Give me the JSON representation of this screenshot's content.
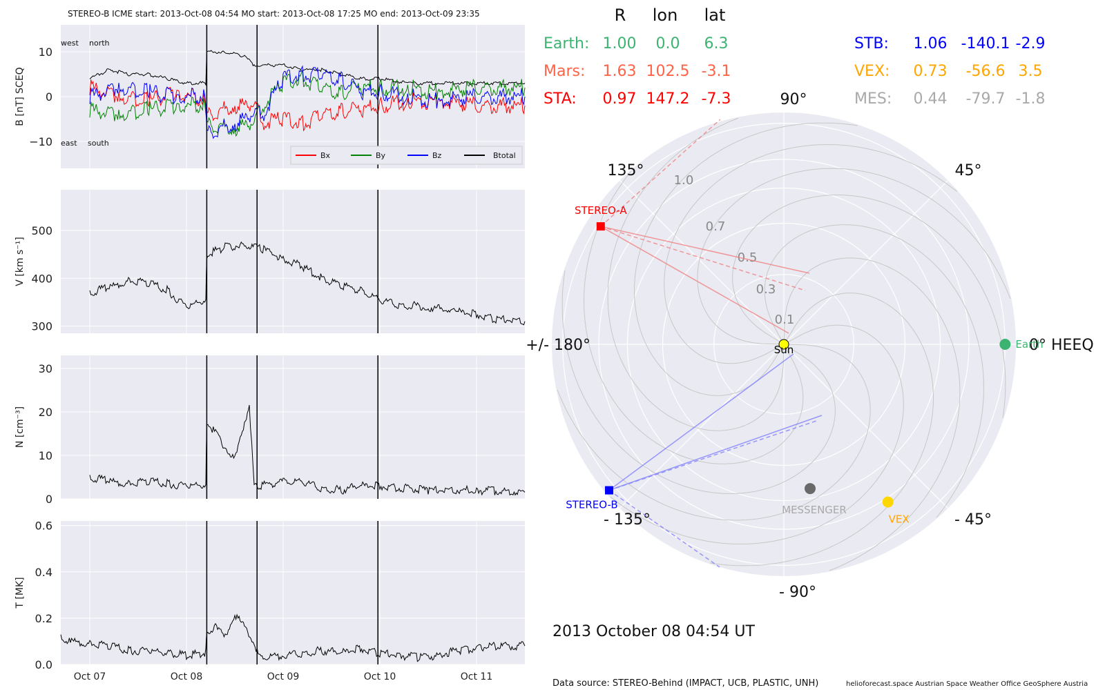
{
  "header": "STEREO-B    ICME start: 2013-Oct-08 04:54   MO start: 2013-Oct-08 17:25   MO end: 2013-Oct-09 23:35",
  "colors": {
    "bx": "#ff0000",
    "by": "#008000",
    "bz": "#0000ff",
    "btotal": "#000000",
    "earth": "#3cb371",
    "mars": "#ff6347",
    "sta": "#ff0000",
    "stb": "#0000ff",
    "vex": "#ffa500",
    "mes": "#a9a9a9"
  },
  "chart_data": [
    {
      "type": "line",
      "ylabel": "B [nT] SCEQ",
      "ylim": [
        -16,
        16
      ],
      "yticks": [
        "10",
        "0",
        "−10"
      ],
      "annotations": {
        "west": "west",
        "north": "north",
        "east": "east",
        "south": "south"
      },
      "legend": {
        "placement": "lower-right",
        "entries": [
          "Bx",
          "By",
          "Bz",
          "Btotal"
        ]
      },
      "series": [
        {
          "name": "Btotal",
          "x": [
            7.0,
            7.2,
            7.4,
            7.6,
            7.8,
            8.0,
            8.2,
            8.21,
            8.4,
            8.6,
            8.7,
            8.9,
            9.0,
            9.2,
            9.4,
            9.6,
            9.8,
            10.0,
            10.3,
            10.6,
            11.0,
            11.5
          ],
          "values": [
            4,
            6,
            5,
            5,
            4,
            3,
            3,
            10,
            10,
            9,
            7,
            7,
            7,
            6,
            6,
            5,
            4,
            4,
            3,
            3,
            3,
            3
          ]
        },
        {
          "name": "Bx",
          "x": [
            7.0,
            7.3,
            7.6,
            7.9,
            8.2,
            8.21,
            8.5,
            8.7,
            8.8,
            9.0,
            9.2,
            9.4,
            9.6,
            9.8,
            10.0,
            10.3,
            10.6,
            11.0,
            11.5
          ],
          "values": [
            2,
            0,
            -1,
            1,
            -1,
            -4,
            -2,
            -2,
            -6,
            -5,
            -6,
            -4,
            -3,
            -3,
            -2,
            -1,
            -1,
            -2,
            -2
          ]
        },
        {
          "name": "By",
          "x": [
            7.0,
            7.3,
            7.6,
            7.9,
            8.2,
            8.21,
            8.5,
            8.7,
            8.8,
            9.0,
            9.2,
            9.4,
            9.6,
            9.8,
            10.0,
            10.3,
            10.6,
            11.0,
            11.5
          ],
          "values": [
            -3,
            -4,
            -3,
            -2,
            -2,
            -6,
            -7,
            -6,
            -2,
            3,
            4,
            2,
            1,
            2,
            2,
            2,
            1,
            2,
            2
          ]
        },
        {
          "name": "Bz",
          "x": [
            7.0,
            7.3,
            7.6,
            7.9,
            8.2,
            8.21,
            8.5,
            8.7,
            8.8,
            9.0,
            9.2,
            9.4,
            9.6,
            9.8,
            10.0,
            10.3,
            10.6,
            11.0,
            11.5
          ],
          "values": [
            0,
            2,
            1,
            0,
            0,
            -8,
            -6,
            -4,
            -4,
            4,
            5,
            5,
            4,
            1,
            1,
            0,
            -1,
            0,
            0
          ]
        }
      ]
    },
    {
      "type": "line",
      "ylabel": "V [km s⁻¹]",
      "ylim": [
        285,
        585
      ],
      "yticks": [
        "500",
        "400",
        "300"
      ],
      "series": [
        {
          "name": "V",
          "x": [
            7.0,
            7.2,
            7.4,
            7.6,
            7.8,
            8.0,
            8.2,
            8.21,
            8.4,
            8.6,
            8.8,
            9.0,
            9.2,
            9.4,
            9.6,
            9.8,
            10.0,
            10.2,
            10.5,
            10.8,
            11.0,
            11.2,
            11.5
          ],
          "values": [
            370,
            380,
            395,
            390,
            375,
            340,
            355,
            450,
            465,
            470,
            460,
            440,
            425,
            400,
            385,
            375,
            355,
            345,
            340,
            330,
            325,
            315,
            310
          ]
        }
      ]
    },
    {
      "type": "line",
      "ylabel": "N [cm⁻³]",
      "ylim": [
        0,
        33
      ],
      "yticks": [
        "30",
        "20",
        "10",
        "0"
      ],
      "series": [
        {
          "name": "N",
          "x": [
            7.0,
            7.2,
            7.4,
            7.6,
            7.8,
            8.0,
            8.2,
            8.21,
            8.3,
            8.4,
            8.5,
            8.6,
            8.65,
            8.7,
            8.75,
            9.0,
            9.2,
            9.4,
            9.6,
            9.8,
            10.0,
            10.5,
            11.0,
            11.5
          ],
          "values": [
            5,
            4,
            3.5,
            4,
            3.5,
            3,
            3.2,
            18,
            15,
            12,
            9,
            17,
            22,
            3,
            3,
            4,
            4,
            2.5,
            2,
            3,
            3,
            2,
            2,
            1.5
          ]
        }
      ]
    },
    {
      "type": "line",
      "ylabel": "T [MK]",
      "ylim": [
        0,
        0.62
      ],
      "yticks": [
        "0.6",
        "0.4",
        "0.2",
        "0.0"
      ],
      "xticks": [
        "Oct 07",
        "Oct 08",
        "Oct 09",
        "Oct 10",
        "Oct 11"
      ],
      "series": [
        {
          "name": "T",
          "x": [
            6.7,
            6.8,
            7.0,
            7.2,
            7.4,
            7.6,
            7.8,
            8.0,
            8.2,
            8.21,
            8.3,
            8.4,
            8.5,
            8.6,
            8.7,
            8.75,
            9.0,
            9.2,
            9.4,
            9.6,
            9.8,
            10.0,
            10.2,
            10.4,
            10.6,
            10.8,
            11.0,
            11.2,
            11.5
          ],
          "values": [
            0.12,
            0.1,
            0.09,
            0.08,
            0.06,
            0.06,
            0.05,
            0.04,
            0.05,
            0.14,
            0.16,
            0.12,
            0.22,
            0.16,
            0.1,
            0.03,
            0.04,
            0.05,
            0.06,
            0.05,
            0.07,
            0.05,
            0.04,
            0.03,
            0.04,
            0.06,
            0.07,
            0.08,
            0.08
          ]
        }
      ]
    },
    {
      "type": "scatter",
      "title": "2013 October 08  04:54 UT",
      "angle_labels": [
        "90°",
        "45°",
        "0° HEEQ",
        "- 45°",
        "- 90°",
        "- 135°",
        "+/- 180°",
        "135°"
      ],
      "radial_labels": [
        "1.0",
        "0.7",
        "0.5",
        "0.3",
        "0.1"
      ],
      "points": [
        {
          "name": "Sun",
          "r": 0.0,
          "lon": 0.0
        },
        {
          "name": "Earth",
          "r": 1.0,
          "lon": 0.0
        },
        {
          "name": "STEREO-A",
          "r": 0.97,
          "lon": 147.2
        },
        {
          "name": "STEREO-B",
          "r": 1.06,
          "lon": -140.1
        },
        {
          "name": "VEX",
          "r": 0.73,
          "lon": -56.6
        },
        {
          "name": "MESSENGER",
          "r": 0.44,
          "lon": -79.7
        }
      ],
      "table": {
        "headers": [
          "R",
          "lon",
          "lat"
        ],
        "rows": [
          {
            "name": "Earth:",
            "R": "1.00",
            "lon": "0.0",
            "lat": "6.3"
          },
          {
            "name": "Mars:",
            "R": "1.63",
            "lon": "102.5",
            "lat": "-3.1"
          },
          {
            "name": "STA:",
            "R": "0.97",
            "lon": "147.2",
            "lat": "-7.3"
          },
          {
            "name": "STB:",
            "R": "1.06",
            "lon": "-140.1",
            "lat": "-2.9"
          },
          {
            "name": "VEX:",
            "R": "0.73",
            "lon": "-56.6",
            "lat": "3.5"
          },
          {
            "name": "MES:",
            "R": "0.44",
            "lon": "-79.7",
            "lat": "-1.8"
          }
        ]
      }
    }
  ],
  "footer": {
    "source": "Data source: STEREO-Behind (IMPACT, UCB, PLASTIC, UNH)",
    "credits": "helioforecast.space   Austrian Space Weather Office   GeoSphere Austria"
  }
}
